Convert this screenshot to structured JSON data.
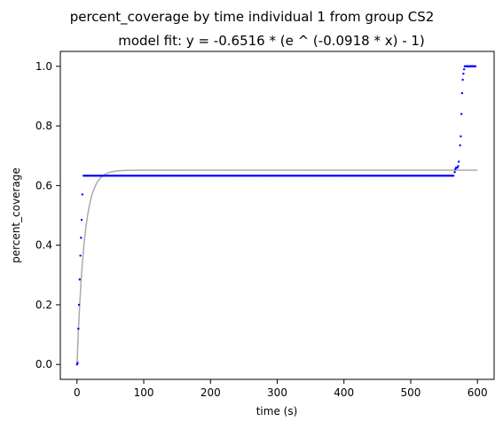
{
  "chart_data": {
    "type": "scatter",
    "title": "percent_coverage by time individual 1 from group CS2",
    "subtitle": "model fit: y = -0.6516 * (e ^ (-0.0918 * x) - 1)",
    "xlabel": "time (s)",
    "ylabel": "percent_coverage",
    "xlim": [
      -25,
      625
    ],
    "ylim": [
      -0.05,
      1.05
    ],
    "x_ticks": [
      0,
      100,
      200,
      300,
      400,
      500,
      600
    ],
    "y_ticks": [
      0.0,
      0.2,
      0.4,
      0.6,
      0.8,
      1.0
    ],
    "x_tick_labels": [
      "0",
      "100",
      "200",
      "300",
      "400",
      "500",
      "600"
    ],
    "y_tick_labels": [
      "0.0",
      "0.2",
      "0.4",
      "0.6",
      "0.8",
      "1.0"
    ],
    "grid": false,
    "legend": "none",
    "colors": {
      "points": "#0000ff",
      "fit": "#aaaaaa"
    },
    "series": [
      {
        "kind": "points",
        "points": [
          [
            0,
            0.0
          ],
          [
            1,
            0.005
          ],
          [
            2,
            0.12
          ],
          [
            3,
            0.2
          ],
          [
            4,
            0.285
          ],
          [
            5,
            0.365
          ],
          [
            6,
            0.425
          ],
          [
            7,
            0.485
          ],
          [
            8,
            0.57
          ],
          [
            566,
            0.645
          ],
          [
            567,
            0.655
          ],
          [
            568,
            0.66
          ],
          [
            569,
            0.66
          ],
          [
            570,
            0.66
          ],
          [
            571,
            0.665
          ],
          [
            572,
            0.68
          ],
          [
            574,
            0.735
          ],
          [
            575,
            0.765
          ],
          [
            576,
            0.84
          ],
          [
            577,
            0.91
          ],
          [
            578,
            0.955
          ],
          [
            579,
            0.975
          ],
          [
            580,
            0.99
          ],
          [
            581,
            1.0
          ],
          [
            582,
            1.0
          ],
          [
            583,
            1.0
          ],
          [
            584,
            1.0
          ],
          [
            585,
            1.0
          ],
          [
            586,
            1.0
          ],
          [
            587,
            1.0
          ],
          [
            588,
            1.0
          ],
          [
            589,
            1.0
          ],
          [
            590,
            1.0
          ],
          [
            591,
            1.0
          ],
          [
            592,
            1.0
          ],
          [
            593,
            1.0
          ],
          [
            594,
            1.0
          ],
          [
            595,
            1.0
          ],
          [
            596,
            1.0
          ],
          [
            597,
            1.0
          ]
        ],
        "plateau": {
          "x_start": 10,
          "x_end": 565,
          "step": 2,
          "y": 0.633
        }
      },
      {
        "kind": "model_fit",
        "a": 0.6516,
        "k": -0.0918,
        "x_start": 0,
        "x_end": 600,
        "samples": 300
      }
    ]
  }
}
